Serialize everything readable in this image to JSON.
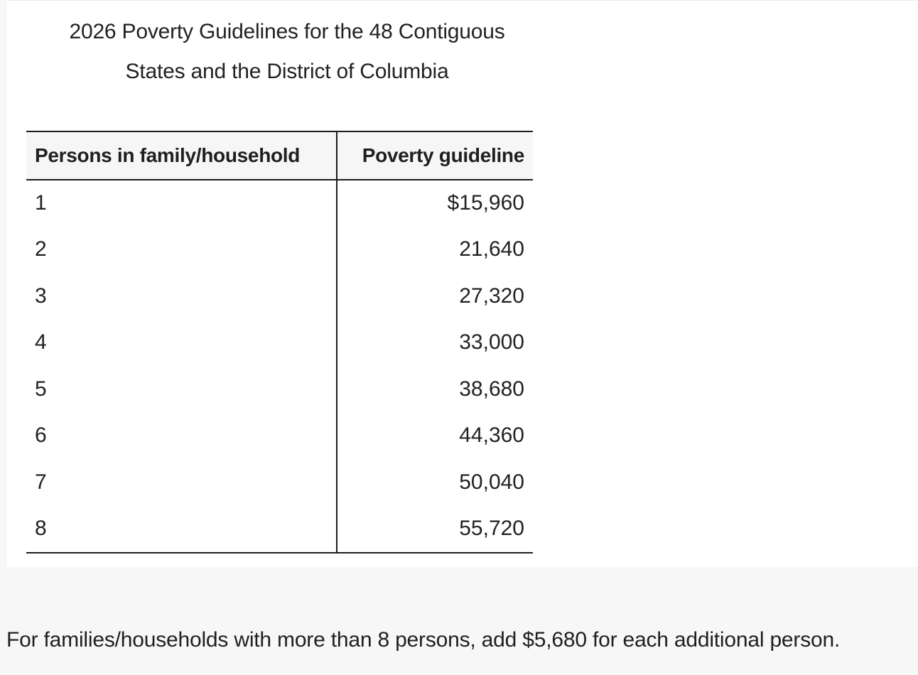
{
  "caption": {
    "line1": "2026 Poverty Guidelines for the 48 Contiguous",
    "line2": "States and the District of Columbia"
  },
  "table": {
    "headers": [
      "Persons in family/household",
      "Poverty guideline"
    ],
    "rows": [
      {
        "persons": "1",
        "guideline": "$15,960"
      },
      {
        "persons": "2",
        "guideline": "21,640"
      },
      {
        "persons": "3",
        "guideline": "27,320"
      },
      {
        "persons": "4",
        "guideline": "33,000"
      },
      {
        "persons": "5",
        "guideline": "38,680"
      },
      {
        "persons": "6",
        "guideline": "44,360"
      },
      {
        "persons": "7",
        "guideline": "50,040"
      },
      {
        "persons": "8",
        "guideline": "55,720"
      }
    ]
  },
  "footnote": "For families/households with more than 8 persons, add $5,680 for each additional person.",
  "colors": {
    "page_background": "#f7f7f7",
    "panel_background": "#ffffff",
    "header_background": "#f6f6f6",
    "rule_color": "#1c1c1c",
    "text": "#1f1f1f"
  }
}
